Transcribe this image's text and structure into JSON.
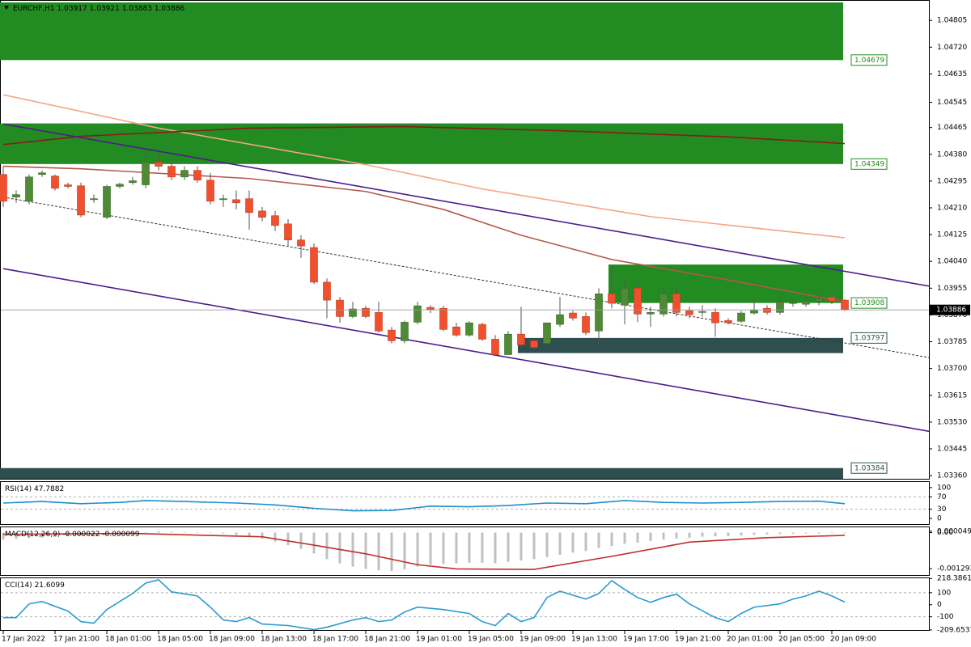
{
  "header": {
    "symbol": "EURCHF,H1"
  },
  "chart_data": [
    {
      "type": "candlestick",
      "categories": [
        "17 Jan 2022",
        null,
        null,
        null,
        "17 Jan 21:00",
        null,
        null,
        null,
        "18 Jan 01:00",
        null,
        null,
        null,
        "18 Jan 05:00",
        null,
        null,
        null,
        "18 Jan 09:00",
        null,
        null,
        null,
        "18 Jan 13:00",
        null,
        null,
        null,
        "18 Jan 17:00",
        null,
        null,
        null,
        "18 Jan 21:00",
        null,
        null,
        null,
        "19 Jan 01:00",
        null,
        null,
        null,
        "19 Jan 05:00",
        null,
        null,
        null,
        "19 Jan 09:00",
        null,
        null,
        null,
        "19 Jan 13:00",
        null,
        null,
        null,
        "19 Jan 17:00",
        null,
        null,
        null,
        "19 Jan 21:00",
        null,
        null,
        null,
        "20 Jan 01:00",
        null,
        null,
        null,
        "20 Jan 05:00",
        null,
        null,
        null,
        "20 Jan 09:00",
        null
      ],
      "open": [
        1.04316,
        1.04244,
        1.04231,
        1.04316,
        1.04311,
        1.04283,
        1.0428,
        1.04236,
        1.0418,
        1.04278,
        1.0429,
        1.04283,
        1.04355,
        1.04342,
        1.04308,
        1.04329,
        1.04298,
        1.04236,
        1.04236,
        1.04239,
        1.042,
        1.04185,
        1.04159,
        1.04108,
        1.04084,
        1.03974,
        1.03917,
        1.03865,
        1.03891,
        1.03878,
        1.03822,
        1.03788,
        1.03847,
        1.03894,
        1.03891,
        1.03832,
        1.03806,
        1.0384,
        1.03793,
        1.03744,
        1.03809,
        1.03788,
        1.0378,
        1.0384,
        1.03876,
        1.03865,
        1.03819,
        1.03937,
        1.03901,
        1.03955,
        1.03873,
        1.03873,
        1.03937,
        1.03883,
        1.03878,
        1.03878,
        1.03852,
        1.0385,
        1.03876,
        1.03891,
        1.03878,
        1.03907,
        1.03904,
        1.03914,
        1.03927,
        1.03917
      ],
      "high": [
        1.04342,
        1.04265,
        1.04316,
        1.04329,
        1.04316,
        1.0429,
        1.0429,
        1.04252,
        1.04283,
        1.0429,
        1.04308,
        1.04393,
        1.04386,
        1.04355,
        1.04342,
        1.04342,
        1.04321,
        1.04252,
        1.04265,
        1.04265,
        1.04213,
        1.042,
        1.04174,
        1.04123,
        1.04097,
        1.03986,
        1.03927,
        1.03912,
        1.03899,
        1.03912,
        1.03832,
        1.03852,
        1.03912,
        1.03901,
        1.03899,
        1.03845,
        1.0385,
        1.03845,
        1.03806,
        1.03819,
        1.03896,
        1.03793,
        1.03845,
        1.03927,
        1.03883,
        1.03878,
        1.03955,
        1.04025,
        1.03974,
        1.03968,
        1.03896,
        1.03955,
        1.03955,
        1.03896,
        1.03901,
        1.03891,
        1.0386,
        1.03883,
        1.03922,
        1.03901,
        1.03927,
        1.03922,
        1.03927,
        1.03937,
        1.03937,
        1.03921
      ],
      "low": [
        1.04213,
        1.04226,
        1.04221,
        1.04308,
        1.04265,
        1.04272,
        1.0418,
        1.04226,
        1.04174,
        1.04272,
        1.04283,
        1.04272,
        1.04329,
        1.04298,
        1.04298,
        1.0429,
        1.04221,
        1.04213,
        1.04205,
        1.04141,
        1.04167,
        1.04136,
        1.04089,
        1.04051,
        1.03968,
        1.0386,
        1.03845,
        1.0386,
        1.0386,
        1.03814,
        1.0378,
        1.0378,
        1.0384,
        1.03876,
        1.03819,
        1.03801,
        1.03801,
        1.03788,
        1.03744,
        1.03744,
        1.03767,
        1.03762,
        1.03775,
        1.03832,
        1.03852,
        1.03806,
        1.03775,
        1.03891,
        1.0384,
        1.03847,
        1.03832,
        1.03865,
        1.03865,
        1.0386,
        1.03865,
        1.03801,
        1.0384,
        1.03845,
        1.03871,
        1.03871,
        1.03871,
        1.03896,
        1.03896,
        1.03901,
        1.03904,
        1.03883
      ],
      "close": [
        1.04231,
        1.04252,
        1.04308,
        1.04321,
        1.04272,
        1.04278,
        1.04187,
        1.04239,
        1.04278,
        1.04285,
        1.04296,
        1.04355,
        1.04342,
        1.04308,
        1.04329,
        1.04298,
        1.04231,
        1.04239,
        1.04226,
        1.04195,
        1.0418,
        1.04154,
        1.04108,
        1.04089,
        1.03974,
        1.03917,
        1.03865,
        1.03889,
        1.03865,
        1.03819,
        1.03788,
        1.03847,
        1.03899,
        1.03886,
        1.03824,
        1.03806,
        1.03845,
        1.03793,
        1.03744,
        1.03809,
        1.03775,
        1.03767,
        1.03845,
        1.03871,
        1.0386,
        1.03814,
        1.03937,
        1.03907,
        1.03955,
        1.03873,
        1.03878,
        1.03937,
        1.03878,
        1.03871,
        1.03881,
        1.03845,
        1.03845,
        1.03876,
        1.03886,
        1.03878,
        1.03912,
        1.03909,
        1.03914,
        1.03922,
        1.03914,
        1.03886
      ],
      "up_color": "#4f8a36",
      "down_color": "#f0502e",
      "wick_color": "#555555",
      "ylim": [
        1.0335,
        1.04862
      ],
      "yticks": [
        1.04805,
        {
          "value": 1.0472,
          "label": "1.04720"
        },
        1.04635,
        1.04545,
        1.04465,
        {
          "value": 1.0438,
          "label": "1.04380"
        },
        1.04295,
        {
          "value": 1.0421,
          "label": "1.04210"
        },
        1.04125,
        {
          "value": 1.0404,
          "label": "1.04040"
        },
        1.03955,
        {
          "value": 1.0387,
          "label": "1.03870"
        },
        1.03785,
        {
          "value": 1.037,
          "label": "1.03700"
        },
        1.03615,
        {
          "value": 1.0353,
          "label": "1.03530"
        },
        1.03445,
        {
          "value": 1.0336,
          "label": "1.03360"
        }
      ],
      "zones": [
        {
          "from": 1.04679,
          "to": 1.04862,
          "x_from": 0,
          "x_to": 65,
          "color": "#228b22"
        },
        {
          "from": 1.04349,
          "to": 1.04478,
          "x_from": 0,
          "x_to": 65,
          "color": "#228b22"
        },
        {
          "from": 1.03908,
          "to": 1.0403,
          "x_from": 47,
          "x_to": 65,
          "color": "#228b22"
        },
        {
          "from": 1.03797,
          "to": 1.03749,
          "x_from": 40,
          "x_to": 65,
          "color": "#2f4f4f"
        },
        {
          "from": 1.03384,
          "to": 1.0335,
          "x_from": 0,
          "x_to": 65,
          "color": "#2f4f4f"
        }
      ],
      "lines": [
        {
          "color": "#f4a582",
          "x": [
            0,
            12,
            28,
            37,
            50,
            65
          ],
          "values": [
            1.04569,
            1.04463,
            1.04347,
            1.0427,
            1.04182,
            1.04115
          ]
        },
        {
          "color": "#8b1a1a",
          "x": [
            0,
            6,
            19,
            31,
            43,
            56,
            65
          ],
          "values": [
            1.04411,
            1.04437,
            1.04463,
            1.04468,
            1.04455,
            1.04435,
            1.04414
          ]
        },
        {
          "color": "#b5574a",
          "x": [
            0,
            6,
            19,
            28,
            34,
            40,
            47,
            56,
            65
          ],
          "values": [
            1.04342,
            1.04334,
            1.04303,
            1.04262,
            1.04205,
            1.04123,
            1.04046,
            1.03981,
            1.03912
          ]
        },
        {
          "color": "#4b1e8c",
          "x": [
            0,
            71.6
          ],
          "values": [
            1.04476,
            1.03961
          ]
        },
        {
          "color": "#4b1e8c",
          "x": [
            0,
            71.6
          ],
          "values": [
            1.04017,
            1.035
          ]
        },
        {
          "color": "#333333",
          "dashed": true,
          "x": [
            0,
            71.6
          ],
          "values": [
            1.04244,
            1.03734
          ]
        }
      ]
    },
    {
      "type": "line",
      "title": "RSI(14)",
      "color": "#1f8fc9",
      "x": [
        0,
        3,
        6,
        9,
        11,
        14,
        18,
        21,
        24,
        27,
        30,
        33,
        36,
        39,
        42,
        45,
        48,
        51,
        54,
        57,
        60,
        63,
        65
      ],
      "values": [
        50,
        55,
        48,
        52,
        58,
        55,
        50,
        44,
        33,
        25,
        26,
        40,
        38,
        42,
        50,
        48,
        58,
        52,
        50,
        52,
        55,
        56,
        47.7882
      ],
      "ylim": [
        -18,
        118
      ],
      "yticks": [
        100,
        70,
        30,
        0
      ],
      "levels": [
        70,
        30
      ]
    },
    {
      "type": "macd",
      "title": "MACD(12,26,9)",
      "histogram_color": "#c0c0c0",
      "histogram": [
        -0.00025,
        -0.00022,
        -0.0002,
        -0.00018,
        -0.00015,
        -0.00012,
        -0.0001,
        -8e-05,
        -5e-05,
        -3e-05,
        -1e-05,
        2e-05,
        4e-05,
        3e-05,
        2e-05,
        1e-05,
        -1e-05,
        -3e-05,
        -8e-05,
        -0.00015,
        -0.00022,
        -0.00032,
        -0.00045,
        -0.00058,
        -0.00075,
        -0.00095,
        -0.0011,
        -0.00122,
        -0.0013,
        -0.00135,
        -0.00138,
        -0.00132,
        -0.00122,
        -0.00115,
        -0.00112,
        -0.0011,
        -0.00108,
        -0.00108,
        -0.0011,
        -0.00105,
        -0.001,
        -0.00095,
        -0.00088,
        -0.0008,
        -0.00072,
        -0.00066,
        -0.00055,
        -0.00048,
        -0.0004,
        -0.00036,
        -0.0003,
        -0.00025,
        -0.00021,
        -0.00018,
        -0.00015,
        -0.00013,
        -0.00012,
        -0.0001,
        -8e-05,
        -6e-05,
        -5e-05,
        -4e-05,
        -3e-05,
        -3e-05,
        -2e-05,
        -2.2e-05
      ],
      "signal": {
        "color": "#c0302a",
        "x": [
          0,
          10,
          20,
          24,
          28,
          32,
          35,
          41,
          47,
          53,
          59,
          65
        ],
        "values": [
          -6e-05,
          -3e-05,
          -0.00015,
          -0.00045,
          -0.00076,
          -0.00115,
          -0.0013,
          -0.00132,
          -0.00085,
          -0.00034,
          -0.00018,
          -9.9e-05
        ]
      },
      "ylim": [
        -0.00152,
        0.00019
      ],
      "yticks": [
        4.9e-05,
        {
          "value": 0,
          "label": "0.00"
        },
        -0.001293
      ]
    },
    {
      "type": "line",
      "title": "CCI(14)",
      "color": "#2a9bd0",
      "x": [
        0,
        1,
        2,
        3,
        5,
        6,
        7,
        8,
        9,
        10,
        11,
        12,
        13,
        15,
        16,
        17,
        18,
        19,
        20,
        22,
        24,
        25,
        27,
        28,
        29,
        30,
        31,
        32,
        34,
        36,
        37,
        38,
        39,
        40,
        41,
        42,
        43,
        45,
        46,
        47,
        48,
        49,
        50,
        51,
        52,
        53,
        55,
        56,
        57,
        58,
        60,
        61,
        62,
        63,
        64,
        65
      ],
      "values": [
        -107,
        -107,
        7,
        27,
        -53,
        -140,
        -153,
        -40,
        27,
        93,
        180,
        207,
        107,
        73,
        -20,
        -127,
        -140,
        -107,
        -160,
        -173,
        -207,
        -187,
        -127,
        -107,
        -140,
        -127,
        -60,
        -20,
        -40,
        -73,
        -140,
        -173,
        -73,
        -140,
        -107,
        60,
        113,
        47,
        93,
        200,
        127,
        60,
        20,
        60,
        87,
        7,
        -107,
        -140,
        -73,
        -20,
        7,
        47,
        73,
        113,
        73,
        21.6099
      ],
      "ylim": [
        -210,
        220
      ],
      "yticks": [
        218.3861,
        100,
        0,
        -100,
        -209.6537
      ],
      "levels": [
        100,
        -100
      ]
    }
  ]
}
